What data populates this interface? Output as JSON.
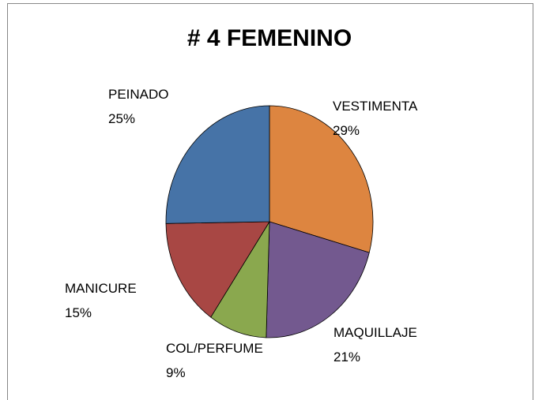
{
  "chart_data": {
    "type": "pie",
    "title": "# 4 FEMENINO",
    "categories": [
      "VESTIMENTA",
      "MAQUILLAJE",
      "COL/PERFUME",
      "MANICURE",
      "PEINADO"
    ],
    "values": [
      29,
      21,
      9,
      15,
      25
    ],
    "value_labels": [
      "29%",
      "21%",
      "9%",
      "15%",
      "25%"
    ],
    "colors": [
      "#dd8540",
      "#73598f",
      "#8aa84e",
      "#a84744",
      "#4673a7"
    ]
  }
}
